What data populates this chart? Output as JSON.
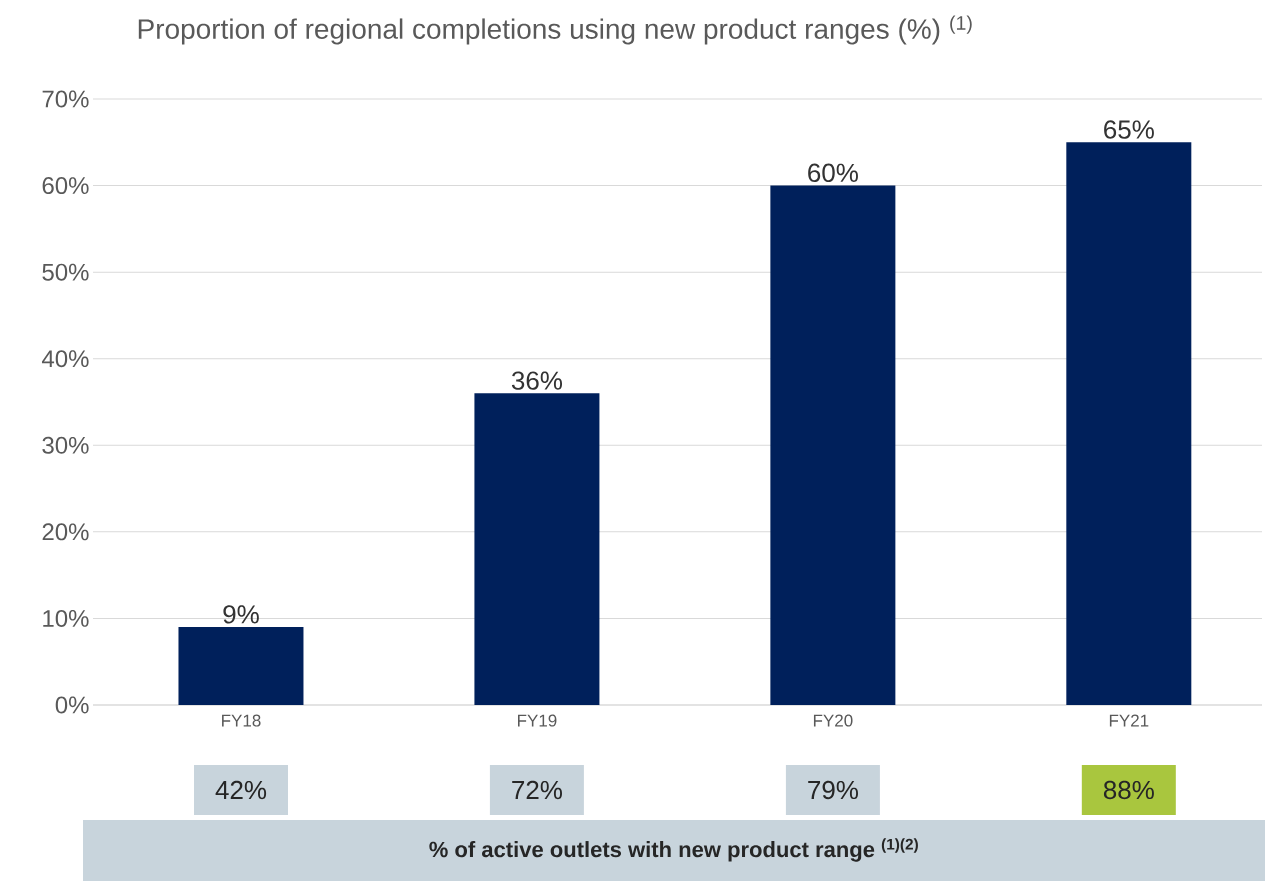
{
  "chart_data": {
    "type": "bar",
    "title": "Proportion of regional completions using new product ranges (%) $^{(1)}$",
    "categories": [
      "FY18",
      "FY19",
      "FY20",
      "FY21"
    ],
    "values": [
      9,
      36,
      60,
      65
    ],
    "value_labels": [
      "9%",
      "36%",
      "60%",
      "65%"
    ],
    "color": "#00205b",
    "ylim": [
      0,
      70
    ],
    "yticks": [
      {
        "value": 0,
        "label": "0%"
      },
      {
        "value": 10,
        "label": "10%"
      },
      {
        "value": 20,
        "label": "20%"
      },
      {
        "value": 30,
        "label": "30%"
      },
      {
        "value": 40,
        "label": "40%"
      },
      {
        "value": 50,
        "label": "50%"
      },
      {
        "value": 60,
        "label": "60%"
      },
      {
        "value": 70,
        "label": "70%"
      }
    ],
    "grid": "y",
    "annotations": [
      "42%",
      "72%",
      "79%",
      "88%",
      "% of active outlets with new product range $^{(1)(2)}$"
    ]
  }
}
